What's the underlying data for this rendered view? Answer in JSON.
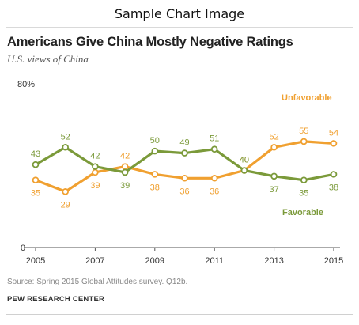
{
  "page": {
    "header_title": "Sample Chart Image",
    "source": "Source: Spring 2015 Global Attitudes survey. Q12b.",
    "organization": "PEW RESEARCH CENTER"
  },
  "chart_data": {
    "type": "line",
    "title": "Americans Give China Mostly Negative Ratings",
    "subtitle": "U.S. views of China",
    "x": [
      2005,
      2006,
      2007,
      2008,
      2009,
      2010,
      2011,
      2012,
      2013,
      2014,
      2015
    ],
    "x_tick_labels": [
      "2005",
      "2007",
      "2009",
      "2011",
      "2013",
      "2015"
    ],
    "x_tick_values": [
      2005,
      2007,
      2009,
      2011,
      2013,
      2015
    ],
    "y_tick_labels": [
      "0",
      "80%"
    ],
    "ylim": [
      0,
      80
    ],
    "series": [
      {
        "name": "Unfavorable",
        "color": "#f0a030",
        "values": [
          35,
          29,
          39,
          42,
          38,
          36,
          36,
          40,
          52,
          55,
          54
        ]
      },
      {
        "name": "Favorable",
        "color": "#7b9a3a",
        "values": [
          43,
          52,
          42,
          39,
          50,
          49,
          51,
          40,
          37,
          35,
          38
        ]
      }
    ]
  }
}
